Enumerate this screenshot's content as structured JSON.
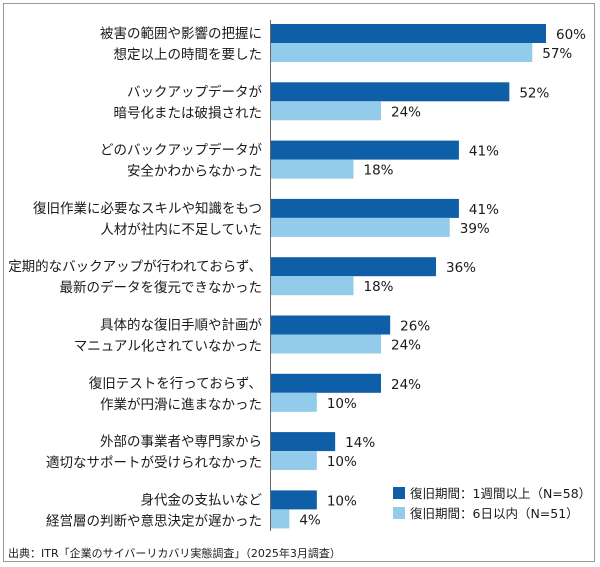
{
  "chart_data": {
    "type": "bar",
    "orientation": "horizontal",
    "categories": [
      [
        "被害の範囲や影響の把握に",
        "想定以上の時間を要した"
      ],
      [
        "バックアップデータが",
        "暗号化または破損された"
      ],
      [
        "どのバックアップデータが",
        "安全かわからなかった"
      ],
      [
        "復旧作業に必要なスキルや知識をもつ",
        "人材が社内に不足していた"
      ],
      [
        "定期的なバックアップが行われておらず、",
        "最新のデータを復元できなかった"
      ],
      [
        "具体的な復旧手順や計画が",
        "マニュアル化されていなかった"
      ],
      [
        "復旧テストを行っておらず、",
        "作業が円滑に進まなかった"
      ],
      [
        "外部の事業者や専門家から",
        "適切なサポートが受けられなかった"
      ],
      [
        "身代金の支払いなど",
        "経営層の判断や意思決定が遅かった"
      ]
    ],
    "series": [
      {
        "name": "復旧期間：1週間以上（N=58）",
        "color": "#0e5ea8",
        "values": [
          60,
          52,
          41,
          41,
          36,
          26,
          24,
          14,
          10
        ],
        "labels": [
          "60%",
          "52%",
          "41%",
          "41%",
          "36%",
          "26%",
          "24%",
          "14%",
          "10%"
        ]
      },
      {
        "name": "復旧期間：6日以内（N=51）",
        "color": "#93cbea",
        "values": [
          57,
          24,
          18,
          39,
          18,
          24,
          10,
          10,
          4
        ],
        "labels": [
          "57%",
          "24%",
          "18%",
          "39%",
          "18%",
          "24%",
          "10%",
          "10%",
          "4%"
        ]
      }
    ],
    "xlim": [
      0,
      60
    ],
    "grid": false,
    "legend_position": "bottom-right"
  },
  "source": "出典：ITR「企業のサイバーリカバリ実態調査」（2025年3月調査）"
}
